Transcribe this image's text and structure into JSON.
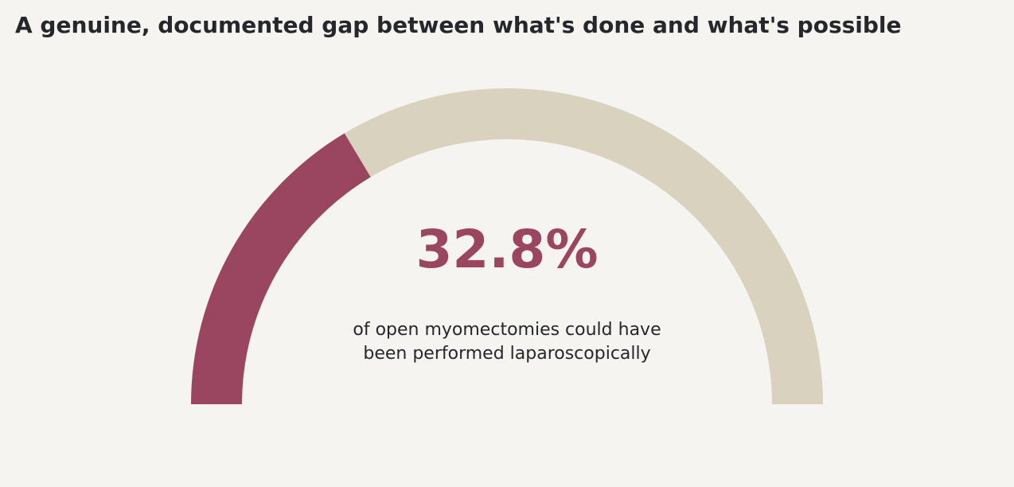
{
  "chart_data": {
    "type": "gauge",
    "title": "A genuine, documented gap between what's done and what's possible",
    "value": 32.8,
    "value_label": "32.8%",
    "caption": [
      "of open myomectomies could have",
      "been performed laparoscopically"
    ],
    "ylim": [
      0,
      100
    ],
    "color": "#9b4660",
    "track_color": "#d8d2bf"
  }
}
